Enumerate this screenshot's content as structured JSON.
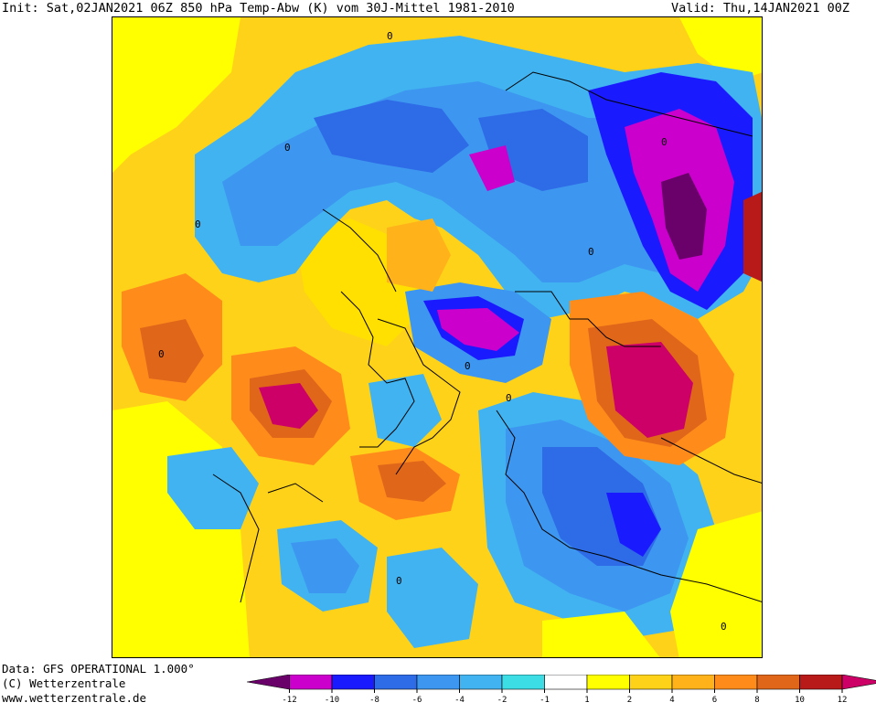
{
  "header": {
    "init_label": "Init: Sat,02JAN2021 06Z 850 hPa Temp-Abw (K) vom 30J-Mittel 1981-2010",
    "valid_label": "Valid: Thu,14JAN2021 00Z"
  },
  "credits": {
    "line1": "Data: GFS OPERATIONAL 1.000°",
    "line2": "(C) Wetterzentrale",
    "line3": "www.wetterzentrale.de"
  },
  "map": {
    "contour_labels": [
      "0",
      "0",
      "0",
      "0",
      "0",
      "0",
      "0",
      "0",
      "0",
      "0"
    ]
  },
  "legend": {
    "colors": [
      "#6a006a",
      "#cc00cc",
      "#1a1aff",
      "#2e6be6",
      "#3d96f0",
      "#41b3f0",
      "#3ddde6",
      "#ffffff",
      "#ffff00",
      "#ffd21a",
      "#ffb21a",
      "#ff8c1a",
      "#e0661a",
      "#b81a1a",
      "#cc0066"
    ],
    "tick_labels": [
      "-12",
      "-10",
      "-8",
      "-6",
      "-4",
      "-2",
      "-1",
      "1",
      "2",
      "4",
      "6",
      "8",
      "10",
      "12"
    ]
  }
}
